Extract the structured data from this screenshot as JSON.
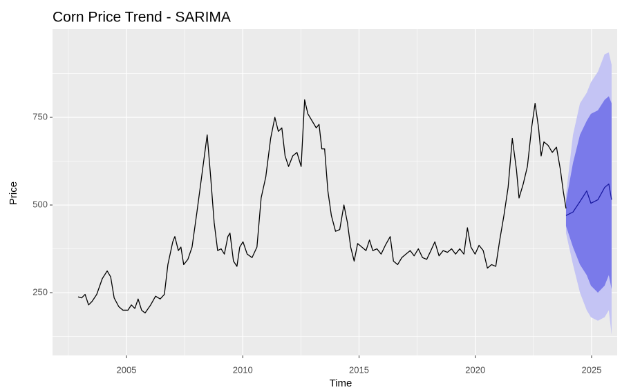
{
  "chart_data": {
    "type": "line",
    "title": "Corn Price Trend - SARIMA",
    "x_label": "Time",
    "y_label": "Price",
    "xlim": [
      2001.82,
      2026.1
    ],
    "ylim": [
      71,
      1002
    ],
    "xticks": [
      2005,
      2010,
      2015,
      2020,
      2025
    ],
    "yticks": [
      250,
      500,
      750
    ],
    "x_minor_grid": [
      2002.5,
      2007.5,
      2012.5,
      2017.5,
      2022.5
    ],
    "y_minor_grid": [
      125,
      375,
      625,
      875
    ],
    "grid": true,
    "series": [
      {
        "color": "#000000",
        "x": [
          2002.92,
          2003.07,
          2003.22,
          2003.37,
          2003.52,
          2003.72,
          2003.96,
          2004.17,
          2004.32,
          2004.47,
          2004.67,
          2004.85,
          2005.06,
          2005.21,
          2005.36,
          2005.5,
          2005.65,
          2005.8,
          2006.04,
          2006.25,
          2006.45,
          2006.63,
          2006.78,
          2006.99,
          2007.08,
          2007.23,
          2007.34,
          2007.46,
          2007.64,
          2007.82,
          2008.03,
          2008.23,
          2008.47,
          2008.62,
          2008.77,
          2008.92,
          2009.07,
          2009.21,
          2009.36,
          2009.45,
          2009.6,
          2009.75,
          2009.87,
          2010.01,
          2010.19,
          2010.4,
          2010.61,
          2010.79,
          2010.99,
          2011.2,
          2011.38,
          2011.53,
          2011.68,
          2011.82,
          2011.97,
          2012.15,
          2012.33,
          2012.51,
          2012.66,
          2012.8,
          2012.98,
          2013.16,
          2013.28,
          2013.4,
          2013.52,
          2013.66,
          2013.81,
          2013.99,
          2014.17,
          2014.35,
          2014.5,
          2014.64,
          2014.79,
          2014.94,
          2015.12,
          2015.3,
          2015.45,
          2015.59,
          2015.77,
          2015.95,
          2016.13,
          2016.34,
          2016.48,
          2016.66,
          2016.84,
          2017.02,
          2017.2,
          2017.37,
          2017.55,
          2017.73,
          2017.91,
          2018.09,
          2018.26,
          2018.44,
          2018.62,
          2018.8,
          2018.98,
          2019.15,
          2019.33,
          2019.51,
          2019.66,
          2019.81,
          2019.99,
          2020.16,
          2020.34,
          2020.52,
          2020.7,
          2020.88,
          2021.05,
          2021.23,
          2021.41,
          2021.59,
          2021.77,
          2021.88,
          2022.06,
          2022.24,
          2022.42,
          2022.57,
          2022.72,
          2022.83,
          2022.95,
          2023.13,
          2023.31,
          2023.49,
          2023.66,
          2023.78,
          2023.9
        ],
        "values": [
          238,
          235,
          245,
          215,
          225,
          245,
          290,
          312,
          295,
          235,
          210,
          200,
          200,
          215,
          205,
          232,
          200,
          192,
          215,
          240,
          232,
          245,
          330,
          395,
          410,
          370,
          380,
          330,
          345,
          380,
          480,
          580,
          700,
          580,
          450,
          370,
          375,
          360,
          410,
          420,
          340,
          325,
          380,
          395,
          360,
          350,
          380,
          520,
          580,
          690,
          750,
          710,
          720,
          640,
          610,
          640,
          650,
          610,
          800,
          760,
          740,
          720,
          730,
          660,
          660,
          540,
          470,
          425,
          430,
          500,
          450,
          380,
          340,
          390,
          380,
          370,
          400,
          370,
          375,
          360,
          385,
          410,
          340,
          330,
          350,
          360,
          370,
          355,
          375,
          350,
          345,
          370,
          395,
          355,
          370,
          365,
          375,
          360,
          375,
          360,
          435,
          380,
          360,
          385,
          370,
          320,
          330,
          325,
          400,
          470,
          550,
          690,
          600,
          520,
          560,
          610,
          720,
          790,
          720,
          640,
          680,
          670,
          650,
          665,
          600,
          540,
          490
        ]
      },
      {
        "color": "#1a1aa0",
        "x": [
          2023.9,
          2024.2,
          2024.5,
          2024.79,
          2024.97,
          2025.27,
          2025.56,
          2025.74,
          2025.86
        ],
        "values": [
          470,
          480,
          510,
          540,
          505,
          515,
          550,
          560,
          515
        ]
      }
    ],
    "bands": [
      {
        "color": "#c4c4f4",
        "x": [
          2023.9,
          2024.2,
          2024.5,
          2024.79,
          2024.97,
          2025.27,
          2025.56,
          2025.74,
          2025.86
        ],
        "lower": [
          420,
          330,
          250,
          200,
          180,
          170,
          180,
          200,
          130
        ],
        "upper": [
          530,
          700,
          790,
          820,
          850,
          880,
          930,
          935,
          900
        ]
      },
      {
        "color": "#7a7aea",
        "x": [
          2023.9,
          2024.2,
          2024.5,
          2024.79,
          2024.97,
          2025.27,
          2025.56,
          2025.74,
          2025.86
        ],
        "lower": [
          440,
          380,
          330,
          300,
          270,
          250,
          270,
          300,
          260
        ],
        "upper": [
          510,
          620,
          700,
          740,
          760,
          770,
          800,
          810,
          790
        ]
      }
    ]
  }
}
